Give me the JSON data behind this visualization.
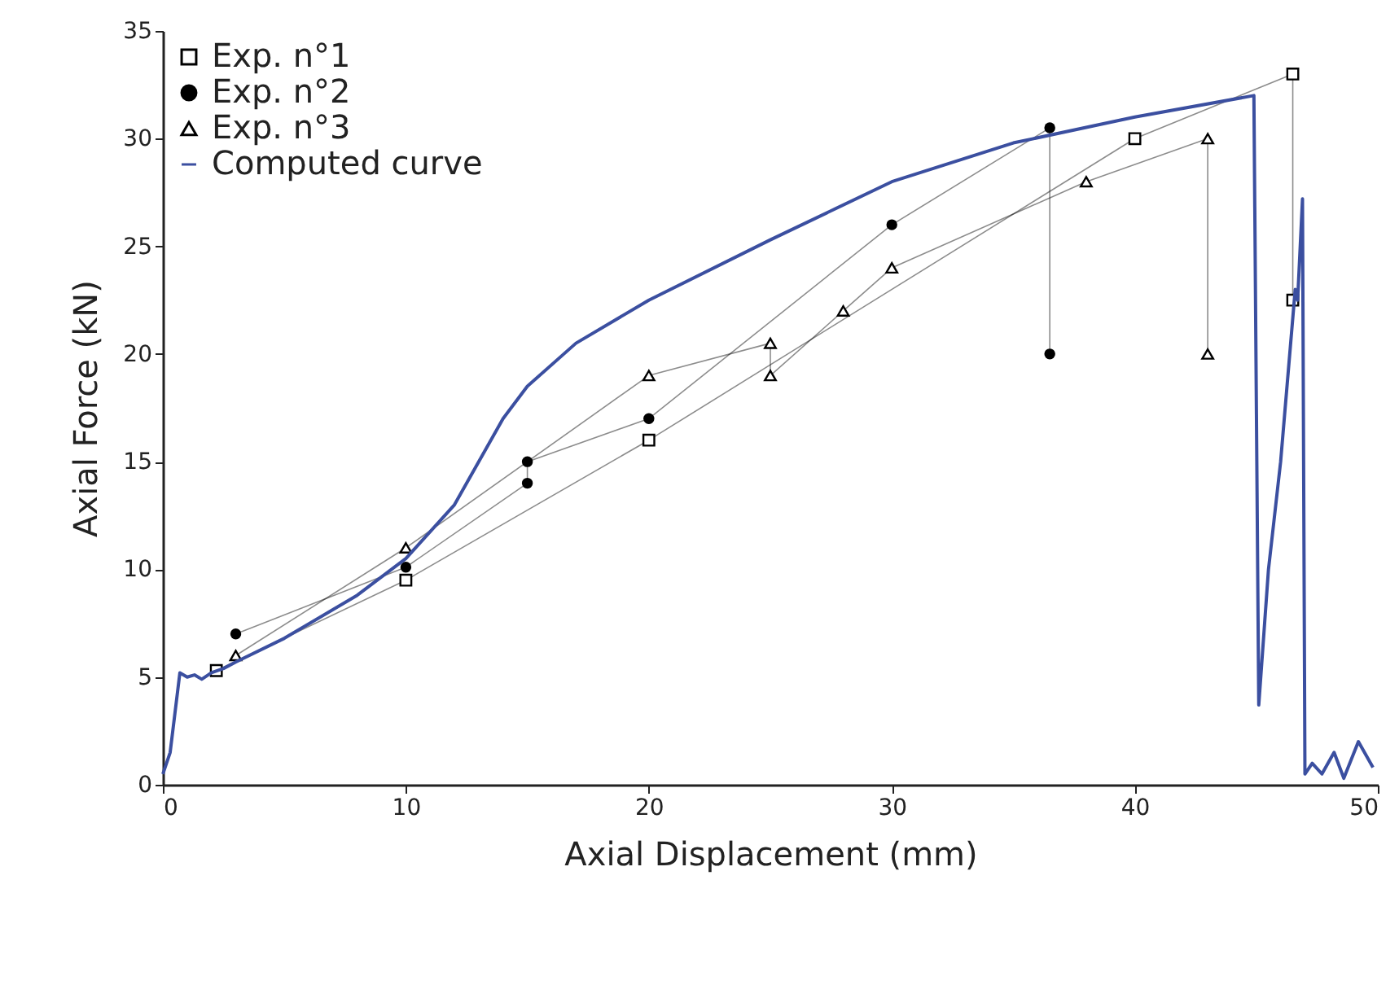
{
  "chart_data": {
    "type": "line",
    "xlabel": "Axial Displacement (mm)",
    "ylabel": "Axial Force (kN)",
    "xlim": [
      0,
      50
    ],
    "ylim": [
      0,
      35
    ],
    "xticks": [
      0,
      10,
      20,
      30,
      40,
      50
    ],
    "yticks": [
      0,
      5,
      10,
      15,
      20,
      25,
      30,
      35
    ],
    "grid": false,
    "legend": "top left",
    "series": [
      {
        "name": "Exp. n°1",
        "color": "#000000",
        "marker": "square",
        "x": [
          2.2,
          10,
          20,
          40,
          46.5,
          46.5
        ],
        "values": [
          5.3,
          9.5,
          16,
          30,
          33,
          22.5
        ]
      },
      {
        "name": "Exp. n°2",
        "color": "#000000",
        "marker": "circle",
        "x": [
          3,
          10,
          15,
          15,
          20,
          30,
          36.5,
          36.5
        ],
        "values": [
          7,
          10.1,
          14,
          15,
          17,
          26,
          30.5,
          20
        ]
      },
      {
        "name": "Exp. n°3",
        "color": "#000000",
        "marker": "triangle",
        "x": [
          3,
          10,
          20,
          25,
          25,
          28,
          30,
          38,
          43,
          43
        ],
        "values": [
          6,
          11,
          19,
          20.5,
          19,
          22,
          24,
          28,
          30,
          20
        ]
      },
      {
        "name": "Computed curve",
        "color": "#3b4fa0",
        "marker": "none",
        "x": [
          0,
          0.3,
          0.7,
          1,
          1.3,
          1.6,
          2,
          2.5,
          3,
          5,
          8,
          10,
          12,
          14,
          15,
          17,
          20,
          25,
          30,
          35,
          40,
          44.9,
          45.1,
          45.5,
          46,
          46.6,
          46.7,
          46.9,
          47,
          47.3,
          47.7,
          48.2,
          48.6,
          49.2,
          49.8
        ],
        "values": [
          0.5,
          1.5,
          5.2,
          5,
          5.1,
          4.9,
          5.2,
          5.4,
          5.7,
          6.8,
          8.8,
          10.5,
          13,
          17,
          18.5,
          20.5,
          22.5,
          25.3,
          28,
          29.8,
          31,
          32,
          3.7,
          10,
          15,
          23,
          22.5,
          27.2,
          0.5,
          1,
          0.5,
          1.5,
          0.3,
          2,
          0.8
        ]
      }
    ]
  }
}
